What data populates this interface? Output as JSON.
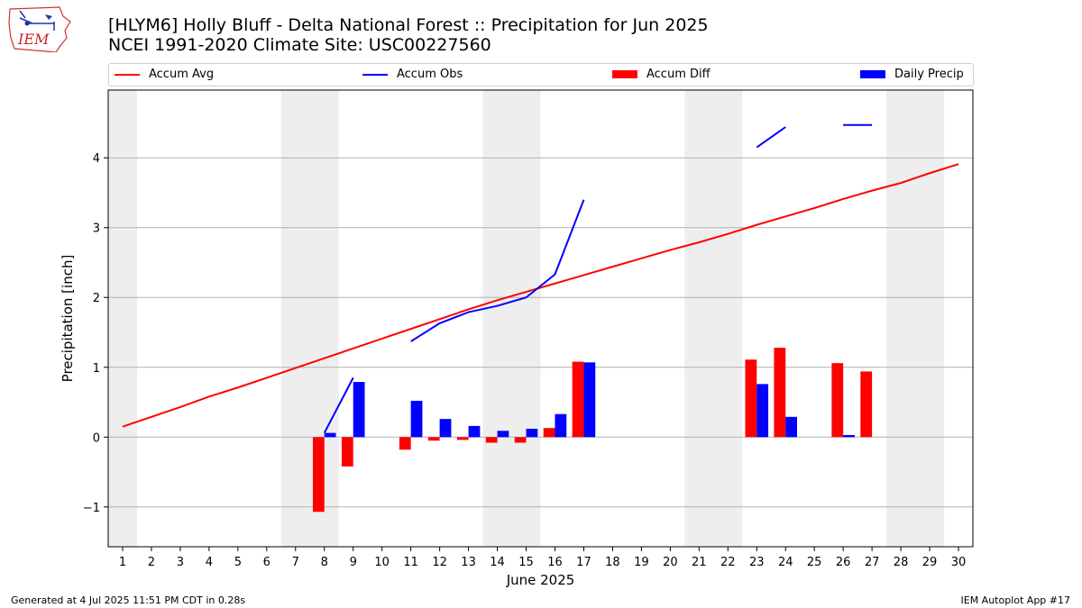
{
  "header": {
    "title_line1": "[HLYM6] Holly Bluff - Delta National Forest :: Precipitation for Jun 2025",
    "title_line2": "NCEI 1991-2020 Climate Site: USC00227560"
  },
  "logo": {
    "text": "IEM",
    "icon": "iem-iowa-logo"
  },
  "footer": {
    "left": "Generated at 4 Jul 2025 11:51 PM CDT in 0.28s",
    "right": "IEM Autoplot App #17"
  },
  "colors": {
    "avg": "#ff0000",
    "obs": "#0000ff",
    "diff": "#ff0000",
    "daily": "#0000ff",
    "weekend": "#eeeeee",
    "grid": "#b0b0b0"
  },
  "chart_data": {
    "type": "bar",
    "title": "[HLYM6] Holly Bluff - Delta National Forest :: Precipitation for Jun 2025",
    "xlabel": "June 2025",
    "ylabel": "Precipitation [inch]",
    "xlim": [
      0.5,
      30.5
    ],
    "ylim": [
      -1.57,
      4.97
    ],
    "yticks": [
      -1,
      0,
      1,
      2,
      3,
      4
    ],
    "ytick_labels": [
      "−1",
      "0",
      "1",
      "2",
      "3",
      "4"
    ],
    "days": [
      1,
      2,
      3,
      4,
      5,
      6,
      7,
      8,
      9,
      10,
      11,
      12,
      13,
      14,
      15,
      16,
      17,
      18,
      19,
      20,
      21,
      22,
      23,
      24,
      25,
      26,
      27,
      28,
      29,
      30
    ],
    "grid": "y",
    "legend_position": "top",
    "weekend_spans": [
      [
        0.5,
        1.5
      ],
      [
        6.5,
        8.5
      ],
      [
        13.5,
        15.5
      ],
      [
        20.5,
        22.5
      ],
      [
        27.5,
        29.5
      ]
    ],
    "series": [
      {
        "name": "Accum Avg",
        "kind": "line",
        "values": [
          0.15,
          0.29,
          0.43,
          0.58,
          0.71,
          0.85,
          0.99,
          1.13,
          1.27,
          1.41,
          1.55,
          1.69,
          1.83,
          1.96,
          2.08,
          2.2,
          2.32,
          2.44,
          2.56,
          2.68,
          2.79,
          2.91,
          3.04,
          3.16,
          3.28,
          3.41,
          3.53,
          3.64,
          3.78,
          3.91
        ]
      },
      {
        "name": "Accum Obs",
        "kind": "line",
        "values": [
          null,
          null,
          null,
          null,
          null,
          null,
          null,
          0.06,
          0.85,
          null,
          1.37,
          1.63,
          1.79,
          1.88,
          2.0,
          2.33,
          3.4,
          null,
          null,
          null,
          null,
          null,
          4.15,
          4.44,
          null,
          4.47,
          4.47,
          null,
          null,
          null
        ]
      },
      {
        "name": "Accum Diff",
        "kind": "bar",
        "values": [
          null,
          null,
          null,
          null,
          null,
          null,
          null,
          -1.07,
          -0.42,
          null,
          -0.18,
          -0.05,
          -0.04,
          -0.08,
          -0.08,
          0.13,
          1.08,
          null,
          null,
          null,
          null,
          null,
          1.11,
          1.28,
          null,
          1.06,
          0.94,
          null,
          null,
          null
        ]
      },
      {
        "name": "Daily Precip",
        "kind": "bar",
        "values": [
          null,
          null,
          null,
          null,
          null,
          null,
          null,
          0.06,
          0.79,
          null,
          0.52,
          0.26,
          0.16,
          0.09,
          0.12,
          0.33,
          1.07,
          null,
          null,
          null,
          null,
          null,
          0.76,
          0.29,
          null,
          0.03,
          null,
          null,
          null,
          null
        ]
      }
    ]
  }
}
